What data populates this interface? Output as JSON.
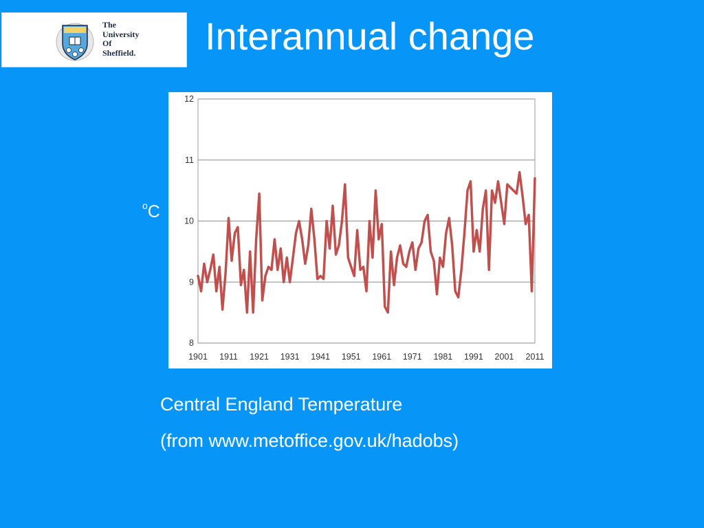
{
  "slide": {
    "title": "Interannual change",
    "unit_base": "C",
    "unit_sup": "o",
    "caption_line1": "Central England Temperature",
    "caption_line2": "(from www.metoffice.gov.uk/hadobs)",
    "background_color": "#0796f7"
  },
  "logo": {
    "lines": [
      "The",
      "University",
      "Of",
      "Sheffield."
    ],
    "icon": "university-crest-icon"
  },
  "chart_data": {
    "type": "line",
    "title": "",
    "xlabel": "",
    "ylabel": "",
    "xlim": [
      1901,
      2011
    ],
    "ylim": [
      8,
      12
    ],
    "yticks": [
      8,
      9,
      10,
      11,
      12
    ],
    "xtick_labels": [
      "1901",
      "1911",
      "1921",
      "1931",
      "1941",
      "1951",
      "1961",
      "1971",
      "1981",
      "1991",
      "2001",
      "2011"
    ],
    "grid": "horizontal",
    "line_color": "#c0504d",
    "series": [
      {
        "x": [
          1901,
          1902,
          1903,
          1904,
          1905,
          1906,
          1907,
          1908,
          1909,
          1910,
          1911,
          1912,
          1913,
          1914,
          1915,
          1916,
          1917,
          1918,
          1919,
          1920,
          1921,
          1922,
          1923,
          1924,
          1925,
          1926,
          1927,
          1928,
          1929,
          1930,
          1931,
          1932,
          1933,
          1934,
          1935,
          1936,
          1937,
          1938,
          1939,
          1940,
          1941,
          1942,
          1943,
          1944,
          1945,
          1946,
          1947,
          1948,
          1949,
          1950,
          1951,
          1952,
          1953,
          1954,
          1955,
          1956,
          1957,
          1958,
          1959,
          1960,
          1961,
          1962,
          1963,
          1964,
          1965,
          1966,
          1967,
          1968,
          1969,
          1970,
          1971,
          1972,
          1973,
          1974,
          1975,
          1976,
          1977,
          1978,
          1979,
          1980,
          1981,
          1982,
          1983,
          1984,
          1985,
          1986,
          1987,
          1988,
          1989,
          1990,
          1991,
          1992,
          1993,
          1994,
          1995,
          1996,
          1997,
          1998,
          1999,
          2000,
          2001,
          2002,
          2003,
          2004,
          2005,
          2006,
          2007,
          2008,
          2009,
          2010,
          2011
        ],
        "values": [
          9.1,
          8.85,
          9.3,
          9.0,
          9.2,
          9.45,
          8.85,
          9.25,
          8.55,
          9.15,
          10.05,
          9.35,
          9.8,
          9.9,
          8.95,
          9.2,
          8.5,
          9.5,
          8.5,
          9.7,
          10.45,
          8.7,
          9.1,
          9.25,
          9.2,
          9.7,
          9.2,
          9.55,
          9.0,
          9.4,
          9.0,
          9.4,
          9.8,
          10.0,
          9.7,
          9.3,
          9.6,
          10.2,
          9.7,
          9.05,
          9.1,
          9.05,
          10.0,
          9.55,
          10.25,
          9.45,
          9.6,
          10.0,
          10.6,
          9.4,
          9.25,
          9.1,
          9.85,
          9.2,
          9.25,
          8.85,
          10.0,
          9.4,
          10.5,
          9.7,
          9.95,
          8.6,
          8.5,
          9.5,
          8.95,
          9.4,
          9.6,
          9.3,
          9.25,
          9.5,
          9.65,
          9.2,
          9.55,
          9.65,
          10.0,
          10.1,
          9.5,
          9.35,
          8.8,
          9.4,
          9.25,
          9.8,
          10.05,
          9.6,
          8.85,
          8.75,
          9.2,
          9.8,
          10.5,
          10.65,
          9.5,
          9.85,
          9.5,
          10.2,
          10.5,
          9.2,
          10.5,
          10.3,
          10.65,
          10.3,
          9.95,
          10.6,
          10.55,
          10.5,
          10.45,
          10.8,
          10.4,
          9.95,
          10.1,
          8.85,
          10.7
        ]
      }
    ]
  }
}
